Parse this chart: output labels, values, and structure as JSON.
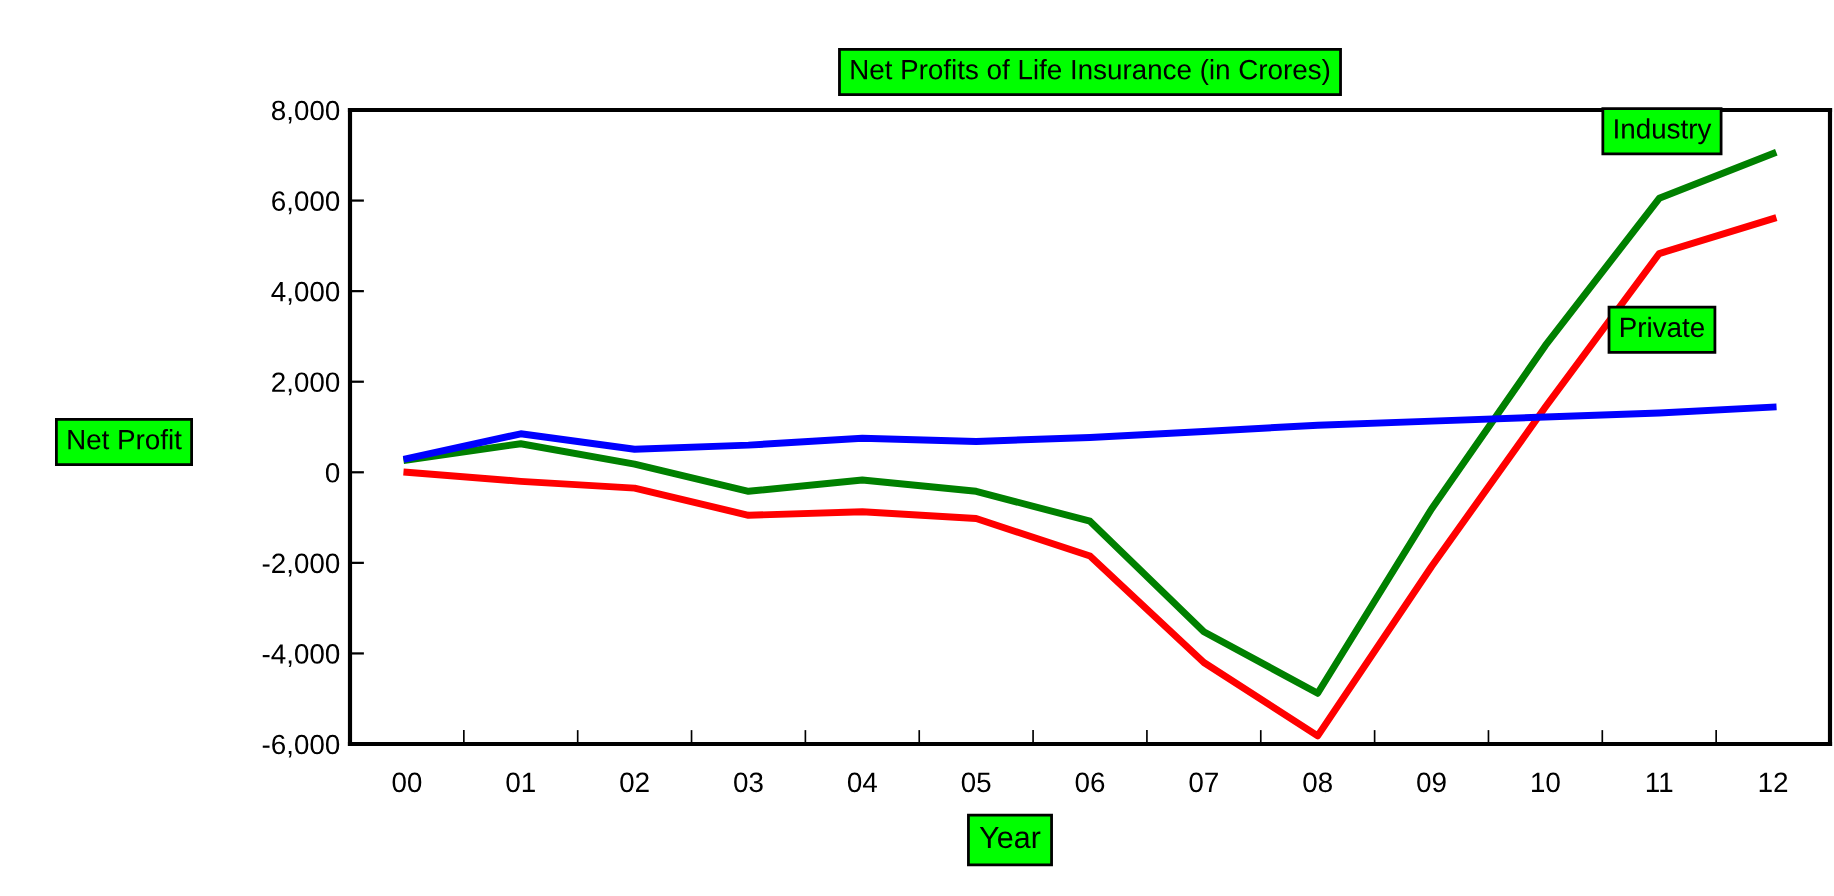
{
  "chart_data": {
    "type": "line",
    "title": "Net Profits of Life Insurance (in Crores)",
    "xlabel": "Year",
    "ylabel": "Net Profit",
    "categories": [
      "00",
      "01",
      "02",
      "03",
      "04",
      "05",
      "06",
      "07",
      "08",
      "09",
      "10",
      "11",
      "12"
    ],
    "series": [
      {
        "name": "Industry",
        "color": "#008000",
        "values": [
          270,
          630,
          180,
          -420,
          -170,
          -420,
          -1080,
          -3520,
          -4880,
          -810,
          2800,
          6050,
          7040
        ]
      },
      {
        "name": "Private",
        "color": "#ff0000",
        "values": [
          0,
          -200,
          -350,
          -950,
          -870,
          -1020,
          -1850,
          -4200,
          -5820,
          -2080,
          1440,
          4830,
          5600
        ]
      },
      {
        "color": "#0000ff",
        "values": [
          300,
          850,
          510,
          600,
          750,
          680,
          770,
          900,
          1040,
          1130,
          1220,
          1310,
          1440
        ]
      }
    ],
    "ylim": [
      -6000,
      8000
    ],
    "yticks": [
      {
        "value": -6000,
        "label": "-6,000"
      },
      {
        "value": -4000,
        "label": "-4,000"
      },
      {
        "value": -2000,
        "label": "-2,000"
      },
      0,
      {
        "value": 2000,
        "label": "2,000"
      },
      {
        "value": 4000,
        "label": "4,000"
      },
      {
        "value": 6000,
        "label": "6,000"
      },
      {
        "value": 8000,
        "label": "8,000"
      }
    ],
    "grid": false,
    "legend": false,
    "line_style": "solid",
    "marker": "none"
  }
}
